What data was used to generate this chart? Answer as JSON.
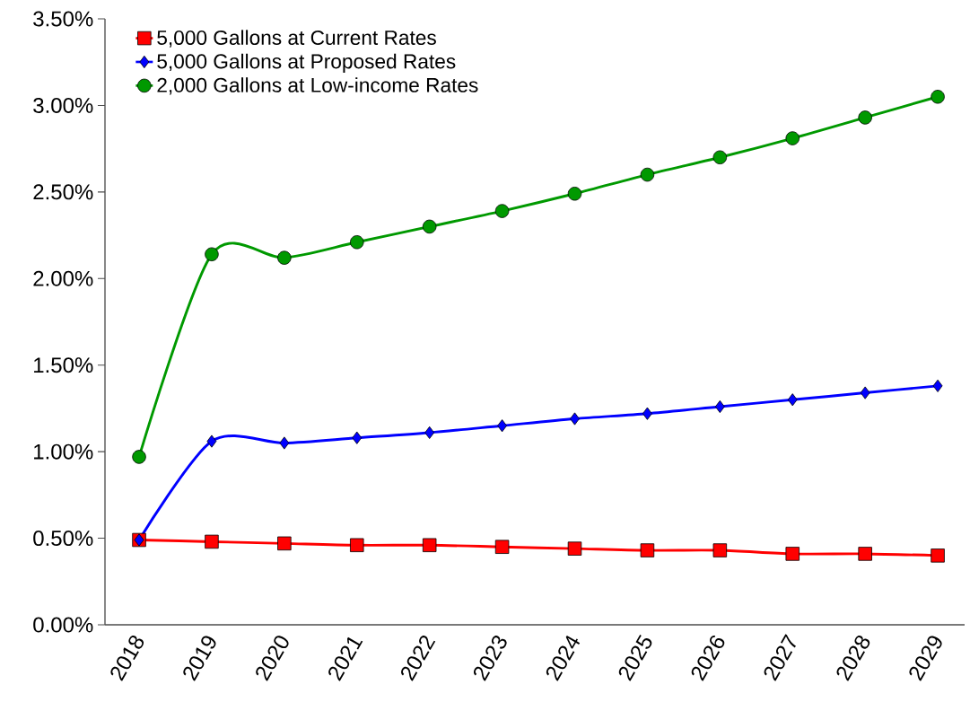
{
  "chart_data": {
    "type": "line",
    "categories": [
      "2018",
      "2019",
      "2020",
      "2021",
      "2022",
      "2023",
      "2024",
      "2025",
      "2026",
      "2027",
      "2028",
      "2029"
    ],
    "series": [
      {
        "name": "5,000 Gallons at Current Rates",
        "color": "#ff0000",
        "marker": "square",
        "values": [
          0.49,
          0.48,
          0.47,
          0.46,
          0.46,
          0.45,
          0.44,
          0.43,
          0.43,
          0.41,
          0.41,
          0.4
        ]
      },
      {
        "name": "5,000 Gallons at Proposed Rates",
        "color": "#0000ff",
        "marker": "diamond",
        "values": [
          0.49,
          1.06,
          1.05,
          1.08,
          1.11,
          1.15,
          1.19,
          1.22,
          1.26,
          1.3,
          1.34,
          1.38
        ]
      },
      {
        "name": "2,000 Gallons at Low-income Rates",
        "color": "#009900",
        "marker": "circle",
        "values": [
          0.97,
          2.14,
          2.12,
          2.21,
          2.3,
          2.39,
          2.49,
          2.6,
          2.7,
          2.81,
          2.93,
          3.05
        ]
      }
    ],
    "ylim": [
      0,
      3.5
    ],
    "yticks": [
      {
        "value": 0,
        "label": "0.00%"
      },
      {
        "value": 0.5,
        "label": "0.50%"
      },
      {
        "value": 1,
        "label": "1.00%"
      },
      {
        "value": 1.5,
        "label": "1.50%"
      },
      {
        "value": 2,
        "label": "2.00%"
      },
      {
        "value": 2.5,
        "label": "2.50%"
      },
      {
        "value": 3,
        "label": "3.00%"
      },
      {
        "value": 3.5,
        "label": "3.50%"
      }
    ],
    "legend": "top left",
    "grid": false,
    "line_style": "solid"
  }
}
